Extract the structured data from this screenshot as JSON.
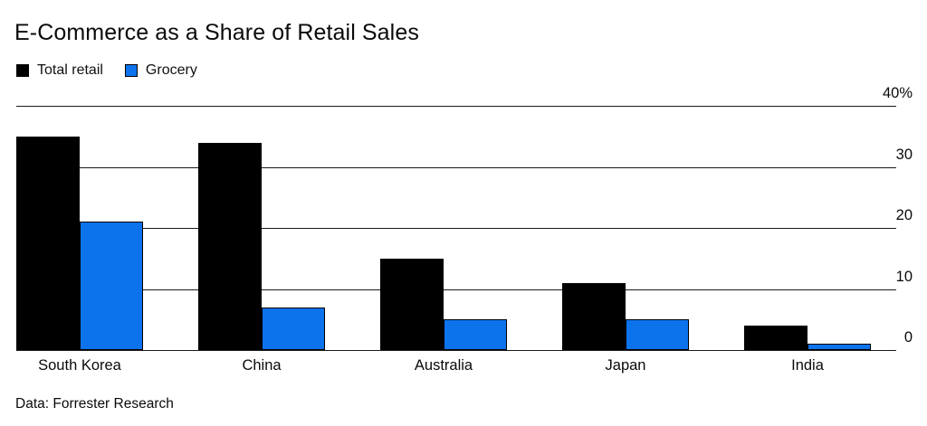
{
  "title": "E-Commerce as a Share of Retail Sales",
  "source": "Data: Forrester Research",
  "legend": [
    {
      "label": "Total retail",
      "color": "#000000"
    },
    {
      "label": "Grocery",
      "color": "#0d73ec"
    }
  ],
  "chart_data": {
    "type": "bar",
    "title": "E-Commerce as a Share of Retail Sales",
    "categories": [
      "South Korea",
      "China",
      "Australia",
      "Japan",
      "India"
    ],
    "series": [
      {
        "name": "Total retail",
        "color": "#000000",
        "outline": false,
        "values": [
          35,
          34,
          15,
          11,
          4
        ]
      },
      {
        "name": "Grocery",
        "color": "#0d73ec",
        "outline": true,
        "values": [
          21,
          7,
          5,
          5,
          1
        ]
      }
    ],
    "xlabel": "",
    "ylabel": "%",
    "ylim": [
      0,
      40
    ],
    "yticks": [
      0,
      10,
      20,
      30,
      40
    ],
    "ytick_labels": [
      "0",
      "10",
      "20",
      "30",
      "40%"
    ],
    "grid": true,
    "gridline_color": "#1a1a1a",
    "y_axis_side": "right",
    "legend_position": "top-left",
    "source_note": "Data: Forrester Research"
  }
}
